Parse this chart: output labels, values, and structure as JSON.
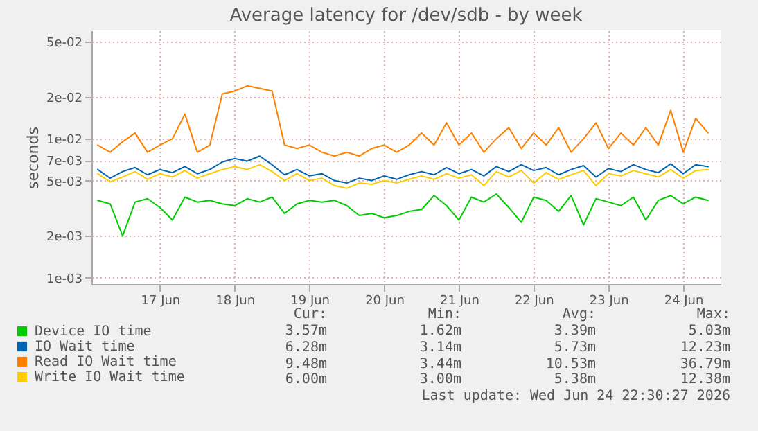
{
  "chart_data": {
    "type": "line",
    "title": "Average latency for /dev/sdb - by week",
    "ylabel": "seconds",
    "x": [
      "2026-06-16T16:00",
      "2026-06-16T20:00",
      "2026-06-17T00:00",
      "2026-06-17T04:00",
      "2026-06-17T08:00",
      "2026-06-17T12:00",
      "2026-06-17T16:00",
      "2026-06-17T20:00",
      "2026-06-18T00:00",
      "2026-06-18T04:00",
      "2026-06-18T08:00",
      "2026-06-18T12:00",
      "2026-06-18T16:00",
      "2026-06-18T20:00",
      "2026-06-19T00:00",
      "2026-06-19T04:00",
      "2026-06-19T08:00",
      "2026-06-19T12:00",
      "2026-06-19T16:00",
      "2026-06-19T20:00",
      "2026-06-20T00:00",
      "2026-06-20T04:00",
      "2026-06-20T08:00",
      "2026-06-20T12:00",
      "2026-06-20T16:00",
      "2026-06-20T20:00",
      "2026-06-21T00:00",
      "2026-06-21T04:00",
      "2026-06-21T08:00",
      "2026-06-21T12:00",
      "2026-06-21T16:00",
      "2026-06-21T20:00",
      "2026-06-22T00:00",
      "2026-06-22T04:00",
      "2026-06-22T08:00",
      "2026-06-22T12:00",
      "2026-06-22T16:00",
      "2026-06-22T20:00",
      "2026-06-23T00:00",
      "2026-06-23T04:00",
      "2026-06-23T08:00",
      "2026-06-23T12:00",
      "2026-06-23T16:00",
      "2026-06-23T20:00",
      "2026-06-24T00:00",
      "2026-06-24T04:00",
      "2026-06-24T08:00",
      "2026-06-24T12:00",
      "2026-06-24T16:00",
      "2026-06-24T20:00"
    ],
    "series": [
      {
        "name": "Device IO time",
        "color": "#00cc00",
        "values": [
          0.0036,
          0.0034,
          0.002,
          0.0035,
          0.0037,
          0.0032,
          0.0026,
          0.0038,
          0.0035,
          0.0036,
          0.0034,
          0.0033,
          0.0037,
          0.0035,
          0.0038,
          0.0029,
          0.0034,
          0.0036,
          0.0035,
          0.0036,
          0.0033,
          0.0028,
          0.0029,
          0.0027,
          0.0028,
          0.003,
          0.0031,
          0.0039,
          0.0033,
          0.0026,
          0.0038,
          0.0035,
          0.004,
          0.0032,
          0.0025,
          0.0038,
          0.0036,
          0.003,
          0.0039,
          0.0024,
          0.0037,
          0.0035,
          0.0033,
          0.0038,
          0.0026,
          0.0036,
          0.0039,
          0.0034,
          0.0038,
          0.0036
        ]
      },
      {
        "name": "IO Wait time",
        "color": "#0066b3",
        "values": [
          0.006,
          0.0052,
          0.0058,
          0.0062,
          0.0055,
          0.006,
          0.0057,
          0.0063,
          0.0056,
          0.006,
          0.0068,
          0.0072,
          0.0069,
          0.0075,
          0.0065,
          0.0055,
          0.006,
          0.0054,
          0.0056,
          0.005,
          0.0048,
          0.0052,
          0.005,
          0.0054,
          0.0051,
          0.0055,
          0.0058,
          0.0055,
          0.0062,
          0.0056,
          0.006,
          0.0054,
          0.0063,
          0.0058,
          0.0065,
          0.0059,
          0.0062,
          0.0055,
          0.006,
          0.0064,
          0.0053,
          0.0061,
          0.0058,
          0.0065,
          0.006,
          0.0057,
          0.0066,
          0.0056,
          0.0065,
          0.0063
        ]
      },
      {
        "name": "Read IO Wait time",
        "color": "#ff8000",
        "values": [
          0.009,
          0.008,
          0.0095,
          0.011,
          0.008,
          0.009,
          0.01,
          0.015,
          0.008,
          0.009,
          0.021,
          0.022,
          0.024,
          0.023,
          0.022,
          0.009,
          0.0085,
          0.009,
          0.008,
          0.0075,
          0.008,
          0.0075,
          0.0085,
          0.009,
          0.008,
          0.009,
          0.011,
          0.009,
          0.013,
          0.009,
          0.011,
          0.008,
          0.01,
          0.012,
          0.0085,
          0.011,
          0.009,
          0.012,
          0.008,
          0.01,
          0.013,
          0.0085,
          0.011,
          0.009,
          0.012,
          0.009,
          0.016,
          0.008,
          0.014,
          0.011
        ]
      },
      {
        "name": "Write IO Wait time",
        "color": "#ffcc00",
        "values": [
          0.0056,
          0.0049,
          0.0053,
          0.0058,
          0.0051,
          0.0056,
          0.0053,
          0.0059,
          0.0052,
          0.0056,
          0.006,
          0.0063,
          0.006,
          0.0065,
          0.0058,
          0.005,
          0.0056,
          0.005,
          0.0052,
          0.0046,
          0.0044,
          0.0048,
          0.0047,
          0.005,
          0.0048,
          0.0051,
          0.0054,
          0.0051,
          0.0056,
          0.0052,
          0.0055,
          0.0046,
          0.0058,
          0.0053,
          0.0059,
          0.0048,
          0.0057,
          0.0051,
          0.0055,
          0.0059,
          0.0046,
          0.0056,
          0.0054,
          0.0059,
          0.0056,
          0.0053,
          0.006,
          0.0052,
          0.0059,
          0.006
        ]
      }
    ],
    "log": true,
    "ylim": [
      0.0009,
      0.06
    ],
    "yticks": [
      {
        "value": 0.001,
        "label": "1e-03"
      },
      {
        "value": 0.002,
        "label": "2e-03"
      },
      {
        "value": 0.005,
        "label": "5e-03"
      },
      {
        "value": 0.007,
        "label": "7e-03"
      },
      {
        "value": 0.01,
        "label": "1e-02"
      },
      {
        "value": 0.02,
        "label": "2e-02"
      },
      {
        "value": 0.05,
        "label": "5e-02"
      }
    ],
    "xlim": [
      "2026-06-16T14:00",
      "2026-06-25T00:00"
    ],
    "xticks": [
      {
        "value": "2026-06-17T12:00",
        "label": "17 Jun"
      },
      {
        "value": "2026-06-18T12:00",
        "label": "18 Jun"
      },
      {
        "value": "2026-06-19T12:00",
        "label": "19 Jun"
      },
      {
        "value": "2026-06-20T12:00",
        "label": "20 Jun"
      },
      {
        "value": "2026-06-21T12:00",
        "label": "21 Jun"
      },
      {
        "value": "2026-06-22T12:00",
        "label": "22 Jun"
      },
      {
        "value": "2026-06-23T12:00",
        "label": "23 Jun"
      },
      {
        "value": "2026-06-24T12:00",
        "label": "24 Jun"
      }
    ],
    "grid": true,
    "legend": "bottom",
    "line_style": "solid",
    "annotations": [
      "Cur:",
      "Min:",
      "Avg:",
      "Max:",
      "3.57m",
      "1.62m",
      "3.39m",
      "5.03m",
      "6.28m",
      "3.14m",
      "5.73m",
      "12.23m",
      "9.48m",
      "3.44m",
      "10.53m",
      "36.79m",
      "6.00m",
      "3.00m",
      "5.38m",
      "12.38m",
      "Last update: Wed Jun 24 22:30:27 2026"
    ]
  }
}
